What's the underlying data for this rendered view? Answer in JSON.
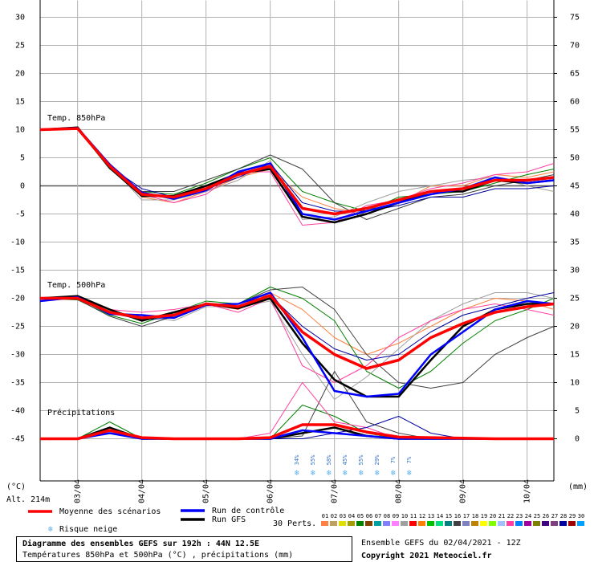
{
  "chart_data": {
    "type": "line",
    "ylabel": "(°C)",
    "y2label": "(mm)",
    "altitude": "Alt. 214m",
    "panel_labels": [
      "Temp. 850hPa",
      "Temp. 500hPa",
      "Précipitations"
    ],
    "x": [
      -2,
      12,
      24,
      36,
      48,
      60,
      72,
      84,
      96,
      108,
      120,
      132,
      144,
      156,
      168,
      180,
      190
    ],
    "xlim": [
      -2,
      190
    ],
    "xticks": [
      {
        "value": 12,
        "label": "03/04"
      },
      {
        "value": 36,
        "label": "04/04"
      },
      {
        "value": 60,
        "label": "05/04"
      },
      {
        "value": 84,
        "label": "06/04"
      },
      {
        "value": 108,
        "label": "07/04"
      },
      {
        "value": 132,
        "label": "08/04"
      },
      {
        "value": 156,
        "label": "09/04"
      },
      {
        "value": 180,
        "label": "10/04"
      }
    ],
    "ylim": [
      -52.5,
      33
    ],
    "yticks": [
      30,
      25,
      20,
      15,
      10,
      5,
      0,
      -5,
      -10,
      -15,
      -20,
      -25,
      -30,
      -35,
      -40,
      -45
    ],
    "y2lim": [
      -7.5,
      78
    ],
    "y2ticks": [
      75,
      70,
      65,
      60,
      55,
      50,
      45,
      40,
      35,
      30,
      25,
      20,
      15,
      10,
      5,
      0
    ],
    "grid": true,
    "runs": [
      {
        "name": "Moyenne des scénarios",
        "color": "#ff0000",
        "t850": [
          10,
          10.2,
          3.5,
          -1.5,
          -2,
          -0.5,
          2,
          3.5,
          -4,
          -5,
          -4,
          -2.5,
          -1,
          -0.5,
          1,
          1,
          1.5
        ],
        "t500": [
          -20,
          -20,
          -22.5,
          -23.5,
          -23,
          -21,
          -21.5,
          -19.5,
          -26,
          -30,
          -32.5,
          -31,
          -27,
          -24.5,
          -22.5,
          -21.5,
          -21
        ],
        "precip": [
          0,
          0,
          1.5,
          0.2,
          0,
          0,
          0,
          0.2,
          2.5,
          2.5,
          1.2,
          0.3,
          0.2,
          0.1,
          0,
          0,
          0
        ]
      },
      {
        "name": "Run de contrôle",
        "color": "#0000ff",
        "t850": [
          10,
          10.3,
          3.8,
          -1.2,
          -2.3,
          -0.8,
          2.5,
          4,
          -5,
          -6,
          -4.5,
          -3,
          -1.5,
          -0.5,
          1.5,
          0.5,
          1
        ],
        "t500": [
          -20.5,
          -19.8,
          -22.8,
          -23,
          -23.5,
          -21.2,
          -21,
          -19,
          -27,
          -36.5,
          -37.5,
          -37,
          -30,
          -26,
          -22,
          -20.5,
          -21
        ],
        "precip": [
          0,
          0,
          1,
          0,
          0,
          0,
          0,
          0,
          1.5,
          1,
          0.5,
          0,
          0,
          0,
          0,
          0,
          0
        ]
      },
      {
        "name": "Run GFS",
        "color": "#000000",
        "t850": [
          10,
          10.4,
          3.2,
          -1.8,
          -1.8,
          0,
          2.2,
          3,
          -5.5,
          -6.5,
          -5,
          -3,
          -1,
          -1,
          1,
          0.5,
          1
        ],
        "t500": [
          -20,
          -19.6,
          -22,
          -24,
          -22.5,
          -21,
          -21.8,
          -20,
          -28,
          -34.5,
          -37.5,
          -37.5,
          -31,
          -25,
          -22,
          -21,
          -21
        ],
        "precip": [
          0,
          0,
          2,
          0,
          0,
          0,
          0,
          0,
          1,
          2,
          0.5,
          0,
          0,
          0,
          0,
          0,
          0
        ]
      }
    ],
    "perturbations_label": "30 Perts.",
    "perturbations": [
      {
        "name": "01",
        "color": "#ff8040",
        "t850": [
          10,
          10,
          4,
          -2,
          -3,
          -1,
          1.5,
          3,
          -2,
          -4,
          -5,
          -3,
          0,
          0,
          2,
          1.5,
          2.5
        ],
        "t500": [
          -20,
          -20,
          -22,
          -24,
          -23,
          -21,
          -22,
          -19,
          -22,
          -27,
          -30,
          -28,
          -25,
          -22,
          -20,
          -20.5,
          -22
        ]
      },
      {
        "name": "02",
        "color": "#c0a060"
      },
      {
        "name": "03",
        "color": "#e0e000"
      },
      {
        "name": "04",
        "color": "#a0a000"
      },
      {
        "name": "05",
        "color": "#008000",
        "t850": [
          10,
          10.1,
          3,
          -1,
          -1.5,
          0.5,
          3,
          5,
          -1,
          -3,
          -4.5,
          -2,
          -1.5,
          -1,
          0.5,
          2,
          3
        ],
        "t500": [
          -20,
          -20.3,
          -23,
          -24.5,
          -22.5,
          -20.5,
          -21,
          -18,
          -20,
          -24,
          -33,
          -36,
          -33,
          -28,
          -24,
          -22,
          -20
        ],
        "precip": [
          0,
          0,
          3,
          0,
          0,
          0,
          0,
          0,
          6,
          4,
          1,
          0,
          0,
          0,
          0,
          0,
          0
        ]
      },
      {
        "name": "06",
        "color": "#804000"
      },
      {
        "name": "07",
        "color": "#00a0a0"
      },
      {
        "name": "08",
        "color": "#8080ff"
      },
      {
        "name": "09",
        "color": "#ff80ff"
      },
      {
        "name": "10",
        "color": "#a0a0a0",
        "t850": [
          10,
          10.2,
          3.6,
          -2.5,
          -2.5,
          -1,
          1,
          4.5,
          -6,
          -5.5,
          -3,
          -1,
          0,
          1,
          1.5,
          0,
          -1
        ],
        "t500": [
          -20,
          -19.8,
          -22.5,
          -23,
          -24,
          -21.5,
          -21.5,
          -20.5,
          -30,
          -38,
          -34,
          -29,
          -24,
          -21,
          -19,
          -19,
          -20
        ]
      },
      {
        "name": "11",
        "color": "#ff0000"
      },
      {
        "name": "12",
        "color": "#ff8000"
      },
      {
        "name": "13",
        "color": "#00c000"
      },
      {
        "name": "14",
        "color": "#00e080"
      },
      {
        "name": "15",
        "color": "#008080"
      },
      {
        "name": "16",
        "color": "#404040",
        "t850": [
          10,
          10.3,
          3.2,
          -1,
          -1,
          1,
          3,
          5.5,
          3,
          -3,
          -6,
          -4,
          -2,
          -1.5,
          0,
          1,
          2
        ],
        "t500": [
          -20,
          -20.2,
          -23.2,
          -25,
          -23.2,
          -21,
          -21,
          -18.5,
          -18,
          -22,
          -30,
          -35,
          -36,
          -35,
          -30,
          -27,
          -25
        ],
        "precip": [
          0,
          0,
          1,
          0,
          0,
          0,
          0,
          0,
          0.5,
          12,
          3,
          1,
          0,
          0,
          0,
          0,
          0
        ]
      },
      {
        "name": "17",
        "color": "#8080c0"
      },
      {
        "name": "18",
        "color": "#c08000"
      },
      {
        "name": "19",
        "color": "#ffff00"
      },
      {
        "name": "20",
        "color": "#80ff00"
      },
      {
        "name": "21",
        "color": "#a0c0ff"
      },
      {
        "name": "22",
        "color": "#ff40a0",
        "t850": [
          10,
          10,
          3.8,
          -1.5,
          -3,
          -1.5,
          2.5,
          2.5,
          -7,
          -6.5,
          -3.5,
          -2.5,
          -0.5,
          0.5,
          2,
          2.5,
          4
        ],
        "t500": [
          -20,
          -20,
          -22,
          -22.5,
          -22,
          -21,
          -22.5,
          -20,
          -32,
          -35,
          -32,
          -27,
          -24,
          -22,
          -21,
          -22,
          -23
        ],
        "precip": [
          0,
          0,
          2,
          0,
          0,
          0,
          0,
          1,
          10,
          3,
          2,
          0,
          0,
          0,
          0,
          0,
          0
        ]
      },
      {
        "name": "23",
        "color": "#0080ff"
      },
      {
        "name": "24",
        "color": "#a000a0"
      },
      {
        "name": "25",
        "color": "#808000"
      },
      {
        "name": "26",
        "color": "#400080"
      },
      {
        "name": "27",
        "color": "#804080"
      },
      {
        "name": "28",
        "color": "#0000a0",
        "t850": [
          10,
          10.2,
          3.4,
          -0.5,
          -2,
          -0.5,
          1.5,
          4,
          -3,
          -4.5,
          -4.5,
          -3.5,
          -2,
          -2,
          -0.5,
          -0.5,
          0
        ],
        "t500": [
          -20,
          -19.9,
          -22.6,
          -23.8,
          -23.5,
          -21.2,
          -21,
          -19.5,
          -25,
          -29,
          -31,
          -30,
          -26,
          -23,
          -21.5,
          -20,
          -19
        ],
        "precip": [
          0,
          0,
          1,
          0,
          0,
          0,
          0,
          0,
          0,
          1,
          2,
          4,
          1,
          0,
          0,
          0,
          0
        ]
      },
      {
        "name": "29",
        "color": "#a00000"
      },
      {
        "name": "30",
        "color": "#00a0ff"
      }
    ],
    "snow_risk": {
      "name": "Risque neige",
      "x": [
        94,
        100,
        106,
        112,
        118,
        124,
        130,
        136
      ],
      "values": [
        34,
        55,
        58,
        45,
        55,
        29,
        7,
        7
      ],
      "value_labels": [
        "34%",
        "55%",
        "58%",
        "45%",
        "55%",
        "29%",
        "7%",
        "7%"
      ]
    },
    "title": "Diagramme des ensembles GEFS sur 192h : 44N 12.5E",
    "subtitle": "Températures 850hPa et 500hPa (°C) , précipitations (mm)",
    "run_info": "Ensemble GEFS du 02/04/2021 - 12Z",
    "copyright": "Copyright 2021 Meteociel.fr"
  }
}
